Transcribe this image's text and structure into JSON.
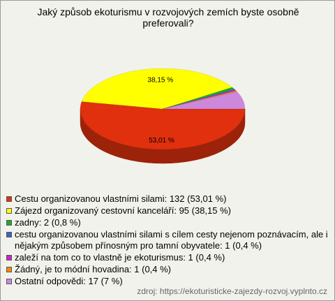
{
  "chart_data": {
    "type": "pie3d",
    "title": "Jaký způsob ekoturismu v rozvojových zemích byste osobně preferovali?",
    "categories": [
      "Cestu organizovanou vlastními silami: 132 (53,01 %)",
      "Zájezd organizovaný cestovní kanceláří: 95 (38,15 %)",
      "zadny: 2 (0,8 %)",
      "cestu organizovanou vlastními silami s cílem cesty nejenom poznávacím, ale i nějakým způsobem přínosným pro tamní obyvatele: 1 (0,4 %)",
      "zaleží na tom co to vlastně je ekoturismus: 1 (0,4 %)",
      "Žádný, je to módní hovadina: 1 (0,4 %)",
      "Ostatní odpovědi: 17 (7 %)"
    ],
    "values": [
      53.01,
      38.15,
      0.8,
      0.4,
      0.4,
      0.4,
      7
    ],
    "value_labels": [
      "53,01 %",
      "38,15 %",
      null,
      null,
      null,
      null,
      null
    ],
    "colors": [
      "#e0300e",
      "#ffff00",
      "#22aa22",
      "#3366cc",
      "#cc22cc",
      "#ff8800",
      "#cc88dd"
    ],
    "source": "zdroj: https://ekoturisticke-zajezdy-rozvoj.vyplnto.cz"
  }
}
